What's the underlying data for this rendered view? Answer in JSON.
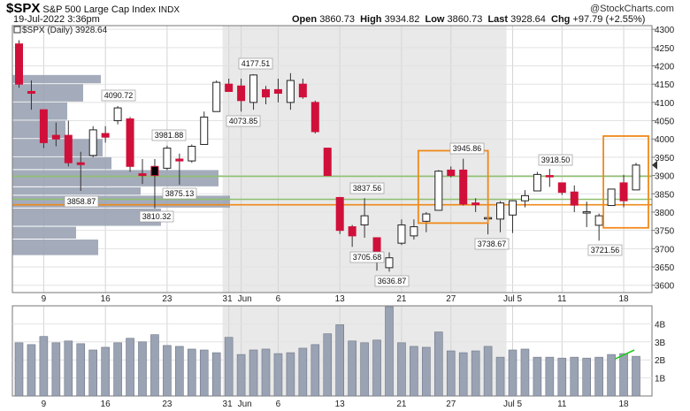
{
  "header": {
    "symbol": "$SPX",
    "name": "S&P 500 Large Cap Index",
    "exchange": "INDX",
    "date": "19-Jul-2022 3:36pm",
    "brand": "@StockCharts.com",
    "open_label": "Open",
    "open": "3860.73",
    "high_label": "High",
    "high": "3934.82",
    "low_label": "Low",
    "low": "3860.73",
    "last_label": "Last",
    "last": "3928.64",
    "chg_label": "Chg",
    "chg": "+97.79 (+2.55%)"
  },
  "chart_data": {
    "type": "candlestick",
    "legend": "$SPX (Daily) 3928.64",
    "price_axis": {
      "ylim": [
        3580,
        4310
      ],
      "ticks": [
        3600,
        3650,
        3700,
        3750,
        3800,
        3850,
        3900,
        3950,
        4000,
        4050,
        4100,
        4150,
        4200,
        4250,
        4300
      ]
    },
    "volume_axis": {
      "ylim": [
        0,
        5.0
      ],
      "ticks": [
        "1B",
        "2B",
        "3B",
        "4B"
      ],
      "tick_values": [
        1,
        2,
        3,
        4
      ]
    },
    "x_tick_labels": [
      "9",
      "16",
      "23",
      "31",
      "Jun",
      "6",
      "13",
      "21",
      "27",
      "Jul 5",
      "11",
      "18"
    ],
    "candles": [
      {
        "date": "2022-05-05",
        "o": 4260,
        "h": 4270,
        "l": 4140,
        "c": 4150
      },
      {
        "date": "2022-05-06",
        "o": 4130,
        "h": 4160,
        "l": 4080,
        "c": 4125
      },
      {
        "date": "2022-05-09",
        "o": 4080,
        "h": 4080,
        "l": 3975,
        "c": 3990
      },
      {
        "date": "2022-05-10",
        "o": 4010,
        "h": 4045,
        "l": 3980,
        "c": 4000
      },
      {
        "date": "2022-05-11",
        "o": 4010,
        "h": 4050,
        "l": 3925,
        "c": 3935
      },
      {
        "date": "2022-05-12",
        "o": 3935,
        "h": 3965,
        "l": 3858,
        "c": 3930
      },
      {
        "date": "2022-05-13",
        "o": 3955,
        "h": 4035,
        "l": 3950,
        "c": 4025
      },
      {
        "date": "2022-05-16",
        "o": 4015,
        "h": 4035,
        "l": 3990,
        "c": 4005
      },
      {
        "date": "2022-05-17",
        "o": 4050,
        "h": 4090,
        "l": 4040,
        "c": 4085
      },
      {
        "date": "2022-05-18",
        "o": 4055,
        "h": 4060,
        "l": 3910,
        "c": 3925
      },
      {
        "date": "2022-05-19",
        "o": 3905,
        "h": 3945,
        "l": 3877,
        "c": 3900
      },
      {
        "date": "2022-05-20",
        "o": 3925,
        "h": 3945,
        "l": 3810,
        "c": 3900
      },
      {
        "date": "2022-05-23",
        "o": 3920,
        "h": 3982,
        "l": 3915,
        "c": 3975
      },
      {
        "date": "2022-05-24",
        "o": 3945,
        "h": 3960,
        "l": 3875,
        "c": 3940
      },
      {
        "date": "2022-05-25",
        "o": 3940,
        "h": 3985,
        "l": 3935,
        "c": 3980
      },
      {
        "date": "2022-05-26",
        "o": 3985,
        "h": 4075,
        "l": 3985,
        "c": 4060
      },
      {
        "date": "2022-05-27",
        "o": 4075,
        "h": 4160,
        "l": 4075,
        "c": 4155
      },
      {
        "date": "2022-05-31",
        "o": 4150,
        "h": 4165,
        "l": 4130,
        "c": 4130
      },
      {
        "date": "2022-06-01",
        "o": 4145,
        "h": 4165,
        "l": 4075,
        "c": 4105
      },
      {
        "date": "2022-06-02",
        "o": 4100,
        "h": 4177,
        "l": 4080,
        "c": 4175
      },
      {
        "date": "2022-06-03",
        "o": 4135,
        "h": 4145,
        "l": 4095,
        "c": 4115
      },
      {
        "date": "2022-06-06",
        "o": 4135,
        "h": 4165,
        "l": 4100,
        "c": 4125
      },
      {
        "date": "2022-06-07",
        "o": 4100,
        "h": 4180,
        "l": 4080,
        "c": 4160
      },
      {
        "date": "2022-06-08",
        "o": 4150,
        "h": 4165,
        "l": 4110,
        "c": 4115
      },
      {
        "date": "2022-06-09",
        "o": 4100,
        "h": 4105,
        "l": 4015,
        "c": 4020
      },
      {
        "date": "2022-06-10",
        "o": 3975,
        "h": 3975,
        "l": 3900,
        "c": 3900
      },
      {
        "date": "2022-06-13",
        "o": 3840,
        "h": 3840,
        "l": 3740,
        "c": 3750
      },
      {
        "date": "2022-06-14",
        "o": 3760,
        "h": 3765,
        "l": 3705,
        "c": 3735
      },
      {
        "date": "2022-06-15",
        "o": 3765,
        "h": 3838,
        "l": 3730,
        "c": 3790
      },
      {
        "date": "2022-06-16",
        "o": 3730,
        "h": 3730,
        "l": 3640,
        "c": 3668
      },
      {
        "date": "2022-06-17",
        "o": 3648,
        "h": 3690,
        "l": 3637,
        "c": 3675
      },
      {
        "date": "2022-06-21",
        "o": 3715,
        "h": 3780,
        "l": 3710,
        "c": 3765
      },
      {
        "date": "2022-06-22",
        "o": 3735,
        "h": 3780,
        "l": 3725,
        "c": 3760
      },
      {
        "date": "2022-06-23",
        "o": 3775,
        "h": 3800,
        "l": 3745,
        "c": 3795
      },
      {
        "date": "2022-06-24",
        "o": 3805,
        "h": 3915,
        "l": 3805,
        "c": 3912
      },
      {
        "date": "2022-06-27",
        "o": 3915,
        "h": 3925,
        "l": 3895,
        "c": 3900
      },
      {
        "date": "2022-06-28",
        "o": 3915,
        "h": 3946,
        "l": 3818,
        "c": 3822
      },
      {
        "date": "2022-06-29",
        "o": 3825,
        "h": 3838,
        "l": 3800,
        "c": 3820
      },
      {
        "date": "2022-06-30",
        "o": 3785,
        "h": 3818,
        "l": 3739,
        "c": 3785
      },
      {
        "date": "2022-07-01",
        "o": 3781,
        "h": 3830,
        "l": 3745,
        "c": 3825
      },
      {
        "date": "2022-07-05",
        "o": 3792,
        "h": 3832,
        "l": 3743,
        "c": 3831
      },
      {
        "date": "2022-07-06",
        "o": 3831,
        "h": 3860,
        "l": 3813,
        "c": 3845
      },
      {
        "date": "2022-07-07",
        "o": 3858,
        "h": 3910,
        "l": 3858,
        "c": 3903
      },
      {
        "date": "2022-07-08",
        "o": 3900,
        "h": 3918,
        "l": 3869,
        "c": 3899
      },
      {
        "date": "2022-07-11",
        "o": 3880,
        "h": 3880,
        "l": 3847,
        "c": 3854
      },
      {
        "date": "2022-07-12",
        "o": 3855,
        "h": 3873,
        "l": 3800,
        "c": 3819
      },
      {
        "date": "2022-07-13",
        "o": 3800,
        "h": 3829,
        "l": 3759,
        "c": 3801
      },
      {
        "date": "2022-07-14",
        "o": 3764,
        "h": 3796,
        "l": 3722,
        "c": 3790
      },
      {
        "date": "2022-07-15",
        "o": 3818,
        "h": 3864,
        "l": 3818,
        "c": 3863
      },
      {
        "date": "2022-07-18",
        "o": 3880,
        "h": 3902,
        "l": 3813,
        "c": 3831
      },
      {
        "date": "2022-07-19",
        "o": 3860.73,
        "h": 3934.82,
        "l": 3860.73,
        "c": 3928.64
      }
    ],
    "volume": [
      2.95,
      2.85,
      3.3,
      2.95,
      3.05,
      2.9,
      2.55,
      2.7,
      2.95,
      3.2,
      3.0,
      3.4,
      2.8,
      2.75,
      2.6,
      2.55,
      2.4,
      3.25,
      2.3,
      2.55,
      2.6,
      2.35,
      2.4,
      2.65,
      2.85,
      3.45,
      3.95,
      3.05,
      2.95,
      3.1,
      4.95,
      2.95,
      2.75,
      2.7,
      3.55,
      2.5,
      2.4,
      2.5,
      2.75,
      2.15,
      2.55,
      2.6,
      2.15,
      2.15,
      2.1,
      2.15,
      2.1,
      2.15,
      2.3,
      2.35,
      2.2
    ],
    "volume_by_price": [
      {
        "low": 4150,
        "high": 4175,
        "width": 1.0
      },
      {
        "low": 4100,
        "high": 4150,
        "width": 0.8
      },
      {
        "low": 4050,
        "high": 4100,
        "width": 0.62
      },
      {
        "low": 4000,
        "high": 4050,
        "width": 0.6
      },
      {
        "low": 3950,
        "high": 4000,
        "width": 1.02
      },
      {
        "low": 3915,
        "high": 3950,
        "width": 1.12
      },
      {
        "low": 3868,
        "high": 3915,
        "width": 2.33
      },
      {
        "low": 3845,
        "high": 3868,
        "width": 1.45
      },
      {
        "low": 3810,
        "high": 3845,
        "width": 2.46
      },
      {
        "low": 3760,
        "high": 3810,
        "width": 1.68
      },
      {
        "low": 3725,
        "high": 3760,
        "width": 0.72
      },
      {
        "low": 3680,
        "high": 3725,
        "width": 0.97
      }
    ],
    "price_annotations": [
      "4177.51",
      "4090.72",
      "4073.85",
      "3981.88",
      "3875.13",
      "3858.87",
      "3810.32",
      "3837.56",
      "3705.68",
      "3636.87",
      "3945.86",
      "3738.67",
      "3918.50",
      "3721.56"
    ],
    "horizontal_lines": [
      {
        "value": 3898,
        "color": "#8fc06f"
      },
      {
        "value": 3835,
        "color": "#8fc06f"
      },
      {
        "value": 3820,
        "color": "#f0891a"
      }
    ],
    "highlight_boxes": [
      {
        "from": "2022-06-23",
        "to": "2022-06-29",
        "top": 3968,
        "bottom": 3770,
        "color": "#f0891a"
      },
      {
        "from": "2022-07-15",
        "to": "2022-07-19",
        "top": 4008,
        "bottom": 3757,
        "color": "#f0891a"
      }
    ],
    "volume_trendline": {
      "from": "2022-07-15",
      "to": "2022-07-19",
      "start": 2.05,
      "end": 2.55,
      "color": "#22cc22"
    },
    "colors": {
      "up_fill": "#ffffff",
      "down_fill": "#d0103a",
      "black_fill": "#000000",
      "volume_bar": "#9aa3b4",
      "vbp_bar": "#9aa3b4",
      "shade": "#e9e9e9"
    }
  }
}
